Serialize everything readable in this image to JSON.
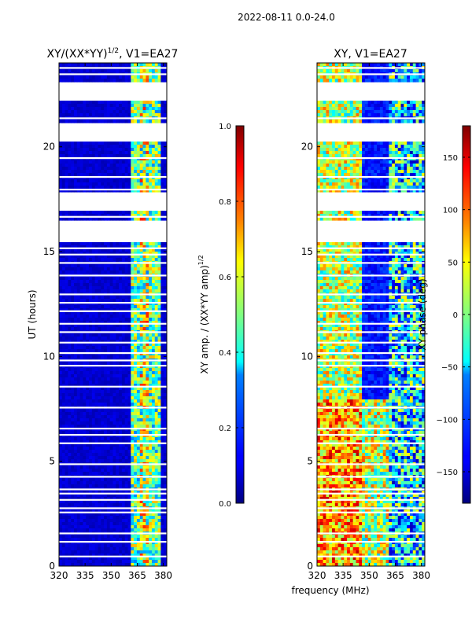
{
  "suptitle": "2022-08-11 0.0-24.0",
  "xlabel": "frequency (MHz)",
  "chart_data": [
    {
      "type": "heatmap",
      "title_prefix": "XY/(XX*YY)",
      "title_exp": "1/2",
      "title_suffix": ", V1=EA27",
      "xlabel": "frequency (MHz)",
      "ylabel": "UT (hours)",
      "xlim": [
        320,
        382
      ],
      "ylim": [
        0,
        24
      ],
      "xticks": [
        320,
        335,
        350,
        365,
        380
      ],
      "yticks": [
        0,
        5,
        10,
        15,
        20
      ],
      "colorbar": {
        "label_prefix": "XY amp. / (XX*YY amp)",
        "label_exp": "1/2",
        "range": [
          0,
          1
        ],
        "ticks": [
          "0.0",
          "0.2",
          "0.4",
          "0.6",
          "0.8",
          "1.0"
        ],
        "colormap": "jet"
      }
    },
    {
      "type": "heatmap",
      "title": "XY, V1=EA27",
      "xlabel": "frequency (MHz)",
      "ylabel": "",
      "xlim": [
        320,
        382
      ],
      "ylim": [
        0,
        24
      ],
      "xticks": [
        320,
        335,
        350,
        365,
        380
      ],
      "yticks": [
        0,
        5,
        10,
        15,
        20
      ],
      "colorbar": {
        "label": "XY phase (deg)",
        "range": [
          -180,
          180
        ],
        "ticks": [
          "−150",
          "−100",
          "−50",
          "0",
          "50",
          "100",
          "150"
        ],
        "colormap": "jet"
      }
    }
  ],
  "colors": {
    "jet_dark_blue": "#00007f",
    "jet_blue": "#0000ff",
    "jet_cyan": "#00ffff",
    "jet_yellow": "#ffff00",
    "jet_red": "#ff0000",
    "jet_dark_red": "#7f0000"
  }
}
